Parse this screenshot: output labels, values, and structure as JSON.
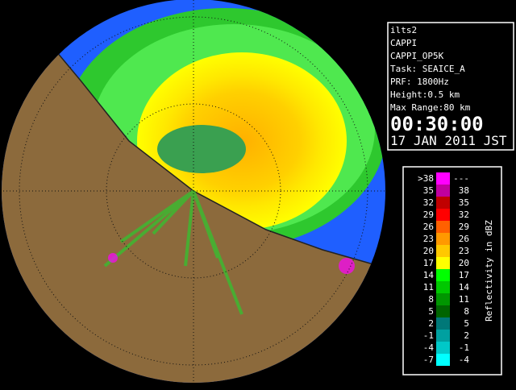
{
  "info": {
    "lines": [
      "ilts2",
      "CAPPI",
      "CAPPI_OP5K",
      "Task: SEAICE_A",
      "PRF: 1800Hz",
      "Height:0.5 km",
      "Max Range:80 km"
    ],
    "time": "00:30:00",
    "date": "17 JAN 2011 JST"
  },
  "legend": {
    "title": "Reflectivity in dBZ",
    "rows": [
      {
        "low": ">38",
        "high": "---",
        "color": "#ff00ff"
      },
      {
        "low": "35",
        "high": "38",
        "color": "#c000a0"
      },
      {
        "low": "32",
        "high": "35",
        "color": "#c00000"
      },
      {
        "low": "29",
        "high": "32",
        "color": "#ff0000"
      },
      {
        "low": "26",
        "high": "29",
        "color": "#ff6000"
      },
      {
        "low": "23",
        "high": "26",
        "color": "#ff9900"
      },
      {
        "low": "20",
        "high": "23",
        "color": "#ffc800"
      },
      {
        "low": "17",
        "high": "20",
        "color": "#ffff00"
      },
      {
        "low": "14",
        "high": "17",
        "color": "#00ff00"
      },
      {
        "low": "11",
        "high": "14",
        "color": "#00c800"
      },
      {
        "low": "8",
        "high": "11",
        "color": "#009600"
      },
      {
        "low": "5",
        "high": "8",
        "color": "#006400"
      },
      {
        "low": "2",
        "high": "5",
        "color": "#007878"
      },
      {
        "low": "-1",
        "high": "2",
        "color": "#00a0a0"
      },
      {
        "low": "-4",
        "high": "-1",
        "color": "#00c8c8"
      },
      {
        "low": "-7",
        "high": "-4",
        "color": "#00ffff"
      }
    ]
  }
}
